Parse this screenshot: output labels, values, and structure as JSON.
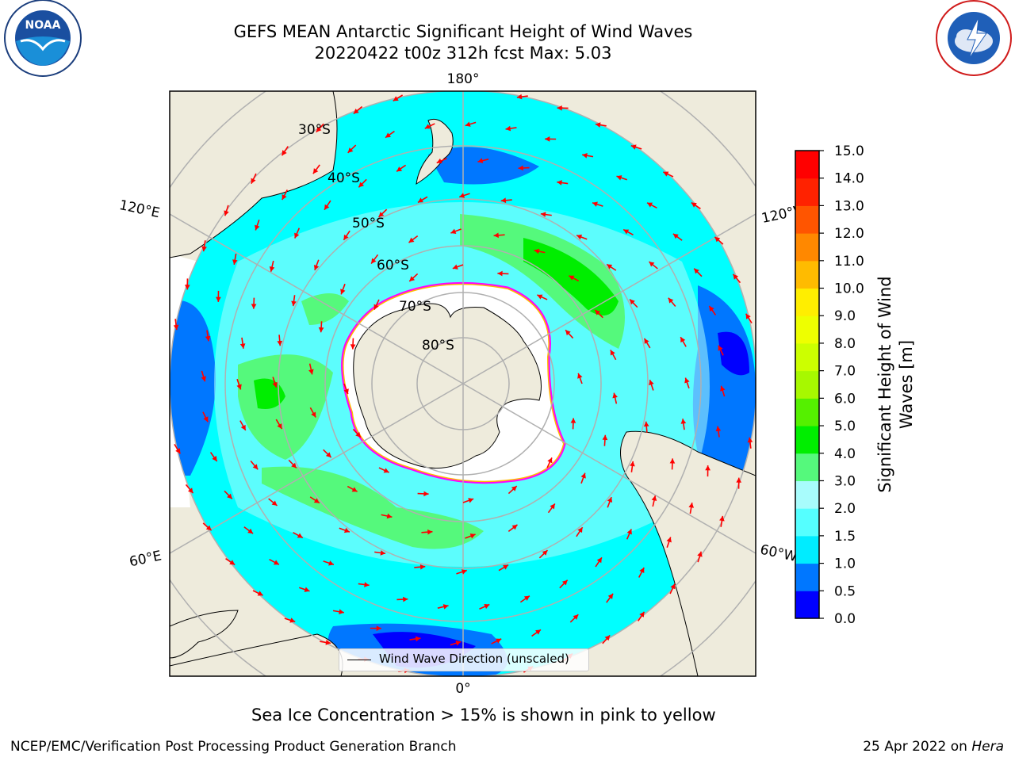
{
  "header": {
    "title_line1": "GEFS MEAN Antarctic Significant Height of Wind Waves",
    "title_line2": "20220422 t00z 312h fcst   Max: 5.03"
  },
  "logos": {
    "noaa": {
      "text": "NOAA",
      "ring_text": "NATIONAL OCEANIC AND ATMOSPHERIC ADMINISTRATION · U.S. DEPARTMENT OF COMMERCE"
    },
    "nws": {
      "ring_text": "NATIONAL WEATHER SERVICE"
    }
  },
  "map": {
    "longitude_labels": {
      "top": "180°",
      "bottom": "0°",
      "upper_left": "120°E",
      "upper_right": "120°W",
      "lower_left": "60°E",
      "lower_right": "60°W"
    },
    "latitude_labels": [
      "30°S",
      "40°S",
      "50°S",
      "60°S",
      "70°S",
      "80°S"
    ],
    "legend_label": "Wind Wave Direction (unscaled)",
    "max_value": 5.03,
    "colors": {
      "land": "#eeebdc",
      "ice_free_ocean": "#00ffff",
      "ice_edge": "#ff00ff",
      "arrow": "#ff0000",
      "grid": "#b0b0b0"
    }
  },
  "colorbar": {
    "label": "Significant Height of Wind Waves [m]",
    "ticks": [
      "0.0",
      "0.5",
      "1.0",
      "1.5",
      "2.0",
      "3.0",
      "4.0",
      "5.0",
      "6.0",
      "7.0",
      "8.0",
      "9.0",
      "10.0",
      "11.0",
      "12.0",
      "13.0",
      "14.0",
      "15.0"
    ],
    "colors": [
      "#0000ff",
      "#0077ff",
      "#00ecff",
      "#55ffff",
      "#a8fcfc",
      "#55f97c",
      "#00ee00",
      "#55f000",
      "#a7f800",
      "#ccff00",
      "#eeff00",
      "#ffee00",
      "#ffbb00",
      "#ff8800",
      "#ff5500",
      "#ff2200",
      "#ff0000"
    ]
  },
  "captions": {
    "sea_ice": "Sea Ice Concentration > 15% is shown in pink to yellow",
    "footer_left": "NCEP/EMC/Verification Post Processing Product Generation Branch",
    "footer_date": "25 Apr 2022 on ",
    "footer_host": "Hera"
  }
}
